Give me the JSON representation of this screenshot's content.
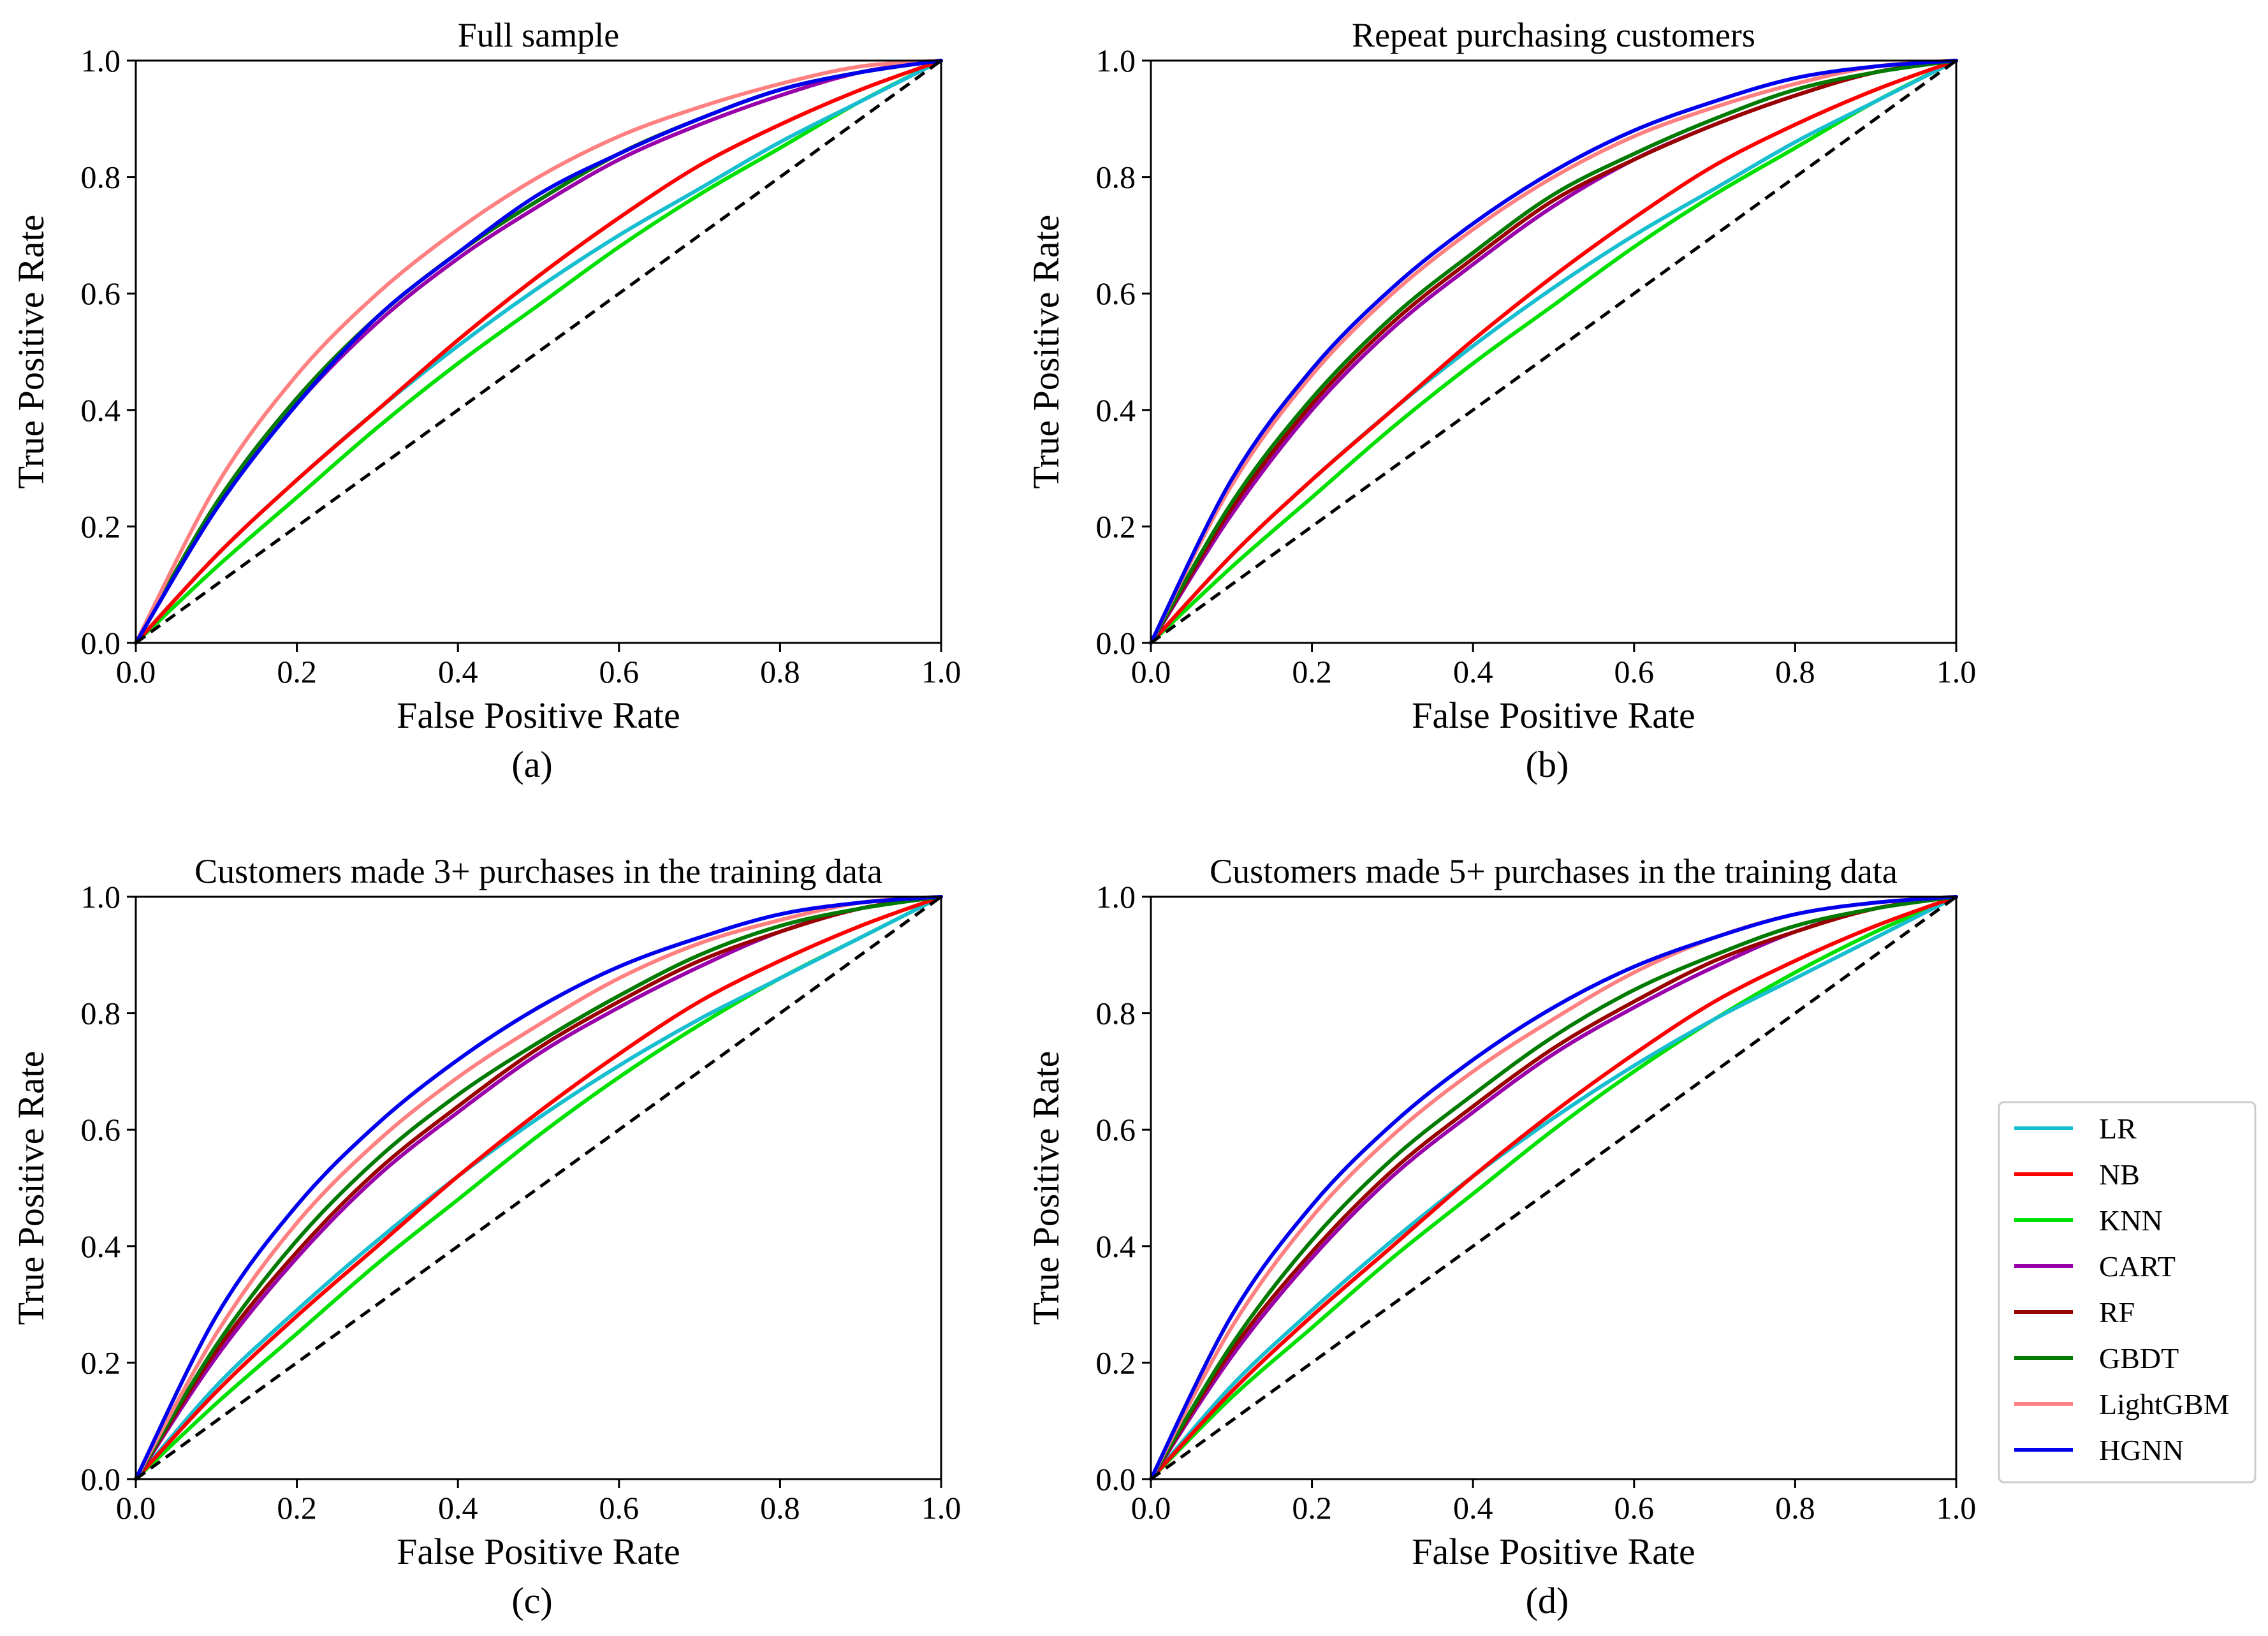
{
  "chart_data": [
    {
      "type": "line",
      "title": "Full sample",
      "xlabel": "False Positive Rate",
      "ylabel": "True Positive Rate",
      "panel_label": "(a)",
      "xlim": [
        0,
        1
      ],
      "ylim": [
        0,
        1
      ],
      "xticks": [
        "0.0",
        "0.2",
        "0.4",
        "0.6",
        "0.8",
        "1.0"
      ],
      "yticks": [
        "0.0",
        "0.2",
        "0.4",
        "0.6",
        "0.8",
        "1.0"
      ],
      "x": [
        0,
        0.1,
        0.2,
        0.3,
        0.4,
        0.5,
        0.6,
        0.7,
        0.8,
        0.9,
        1
      ],
      "series": [
        {
          "name": "LR",
          "values": [
            0,
            0.15,
            0.28,
            0.4,
            0.51,
            0.61,
            0.7,
            0.78,
            0.86,
            0.93,
            1.0
          ]
        },
        {
          "name": "NB",
          "values": [
            0,
            0.15,
            0.28,
            0.4,
            0.52,
            0.63,
            0.73,
            0.82,
            0.89,
            0.95,
            1.0
          ]
        },
        {
          "name": "KNN",
          "values": [
            0,
            0.13,
            0.25,
            0.37,
            0.48,
            0.58,
            0.68,
            0.77,
            0.85,
            0.93,
            1.0
          ]
        },
        {
          "name": "CART",
          "values": [
            0,
            0.23,
            0.41,
            0.55,
            0.66,
            0.75,
            0.83,
            0.89,
            0.94,
            0.98,
            1.0
          ]
        },
        {
          "name": "RF",
          "values": [
            0,
            0.24,
            0.42,
            0.56,
            0.67,
            0.76,
            0.84,
            0.9,
            0.95,
            0.98,
            1.0
          ]
        },
        {
          "name": "GBDT",
          "values": [
            0,
            0.24,
            0.42,
            0.56,
            0.67,
            0.76,
            0.84,
            0.9,
            0.95,
            0.98,
            1.0
          ]
        },
        {
          "name": "LightGBM",
          "values": [
            0,
            0.27,
            0.46,
            0.6,
            0.71,
            0.8,
            0.87,
            0.92,
            0.96,
            0.99,
            1.0
          ]
        },
        {
          "name": "HGNN",
          "values": [
            0,
            0.23,
            0.41,
            0.56,
            0.67,
            0.77,
            0.84,
            0.9,
            0.95,
            0.98,
            1.0
          ]
        }
      ]
    },
    {
      "type": "line",
      "title": "Repeat purchasing customers",
      "xlabel": "False Positive Rate",
      "ylabel": "True Positive Rate",
      "panel_label": "(b)",
      "xlim": [
        0,
        1
      ],
      "ylim": [
        0,
        1
      ],
      "xticks": [
        "0.0",
        "0.2",
        "0.4",
        "0.6",
        "0.8",
        "1.0"
      ],
      "yticks": [
        "0.0",
        "0.2",
        "0.4",
        "0.6",
        "0.8",
        "1.0"
      ],
      "x": [
        0,
        0.1,
        0.2,
        0.3,
        0.4,
        0.5,
        0.6,
        0.7,
        0.8,
        0.9,
        1
      ],
      "series": [
        {
          "name": "LR",
          "values": [
            0,
            0.15,
            0.28,
            0.4,
            0.51,
            0.61,
            0.7,
            0.78,
            0.86,
            0.93,
            1.0
          ]
        },
        {
          "name": "NB",
          "values": [
            0,
            0.15,
            0.28,
            0.4,
            0.52,
            0.63,
            0.73,
            0.82,
            0.89,
            0.95,
            1.0
          ]
        },
        {
          "name": "KNN",
          "values": [
            0,
            0.13,
            0.25,
            0.37,
            0.48,
            0.58,
            0.68,
            0.77,
            0.85,
            0.93,
            1.0
          ]
        },
        {
          "name": "CART",
          "values": [
            0,
            0.22,
            0.4,
            0.54,
            0.65,
            0.75,
            0.83,
            0.89,
            0.94,
            0.98,
            1.0
          ]
        },
        {
          "name": "RF",
          "values": [
            0,
            0.23,
            0.41,
            0.55,
            0.66,
            0.76,
            0.83,
            0.89,
            0.94,
            0.98,
            1.0
          ]
        },
        {
          "name": "GBDT",
          "values": [
            0,
            0.24,
            0.42,
            0.56,
            0.67,
            0.77,
            0.84,
            0.9,
            0.95,
            0.98,
            1.0
          ]
        },
        {
          "name": "LightGBM",
          "values": [
            0,
            0.27,
            0.46,
            0.6,
            0.71,
            0.8,
            0.87,
            0.92,
            0.96,
            0.99,
            1.0
          ]
        },
        {
          "name": "HGNN",
          "values": [
            0,
            0.28,
            0.47,
            0.61,
            0.72,
            0.81,
            0.88,
            0.93,
            0.97,
            0.99,
            1.0
          ]
        }
      ]
    },
    {
      "type": "line",
      "title": "Customers made 3+ purchases in the training data",
      "xlabel": "False Positive Rate",
      "ylabel": "True Positive Rate",
      "panel_label": "(c)",
      "xlim": [
        0,
        1
      ],
      "ylim": [
        0,
        1
      ],
      "xticks": [
        "0.0",
        "0.2",
        "0.4",
        "0.6",
        "0.8",
        "1.0"
      ],
      "yticks": [
        "0.0",
        "0.2",
        "0.4",
        "0.6",
        "0.8",
        "1.0"
      ],
      "x": [
        0,
        0.1,
        0.2,
        0.3,
        0.4,
        0.5,
        0.6,
        0.7,
        0.8,
        0.9,
        1
      ],
      "series": [
        {
          "name": "LR",
          "values": [
            0,
            0.16,
            0.29,
            0.41,
            0.52,
            0.62,
            0.71,
            0.79,
            0.86,
            0.93,
            1.0
          ]
        },
        {
          "name": "NB",
          "values": [
            0,
            0.15,
            0.28,
            0.4,
            0.52,
            0.63,
            0.73,
            0.82,
            0.89,
            0.95,
            1.0
          ]
        },
        {
          "name": "KNN",
          "values": [
            0,
            0.13,
            0.25,
            0.37,
            0.48,
            0.59,
            0.69,
            0.78,
            0.86,
            0.93,
            1.0
          ]
        },
        {
          "name": "CART",
          "values": [
            0,
            0.21,
            0.38,
            0.52,
            0.63,
            0.73,
            0.81,
            0.88,
            0.94,
            0.98,
            1.0
          ]
        },
        {
          "name": "RF",
          "values": [
            0,
            0.22,
            0.39,
            0.53,
            0.64,
            0.74,
            0.82,
            0.89,
            0.94,
            0.98,
            1.0
          ]
        },
        {
          "name": "GBDT",
          "values": [
            0,
            0.23,
            0.41,
            0.55,
            0.66,
            0.75,
            0.83,
            0.9,
            0.95,
            0.98,
            1.0
          ]
        },
        {
          "name": "LightGBM",
          "values": [
            0,
            0.25,
            0.44,
            0.58,
            0.69,
            0.78,
            0.86,
            0.92,
            0.96,
            0.99,
            1.0
          ]
        },
        {
          "name": "HGNN",
          "values": [
            0,
            0.28,
            0.47,
            0.61,
            0.72,
            0.81,
            0.88,
            0.93,
            0.97,
            0.99,
            1.0
          ]
        }
      ]
    },
    {
      "type": "line",
      "title": "Customers made 5+ purchases in the training data",
      "xlabel": "False Positive Rate",
      "ylabel": "True Positive Rate",
      "panel_label": "(d)",
      "xlim": [
        0,
        1
      ],
      "ylim": [
        0,
        1
      ],
      "xticks": [
        "0.0",
        "0.2",
        "0.4",
        "0.6",
        "0.8",
        "1.0"
      ],
      "yticks": [
        "0.0",
        "0.2",
        "0.4",
        "0.6",
        "0.8",
        "1.0"
      ],
      "x": [
        0,
        0.1,
        0.2,
        0.3,
        0.4,
        0.5,
        0.6,
        0.7,
        0.8,
        0.9,
        1
      ],
      "series": [
        {
          "name": "LR",
          "values": [
            0,
            0.16,
            0.29,
            0.41,
            0.52,
            0.62,
            0.71,
            0.79,
            0.86,
            0.93,
            1.0
          ]
        },
        {
          "name": "NB",
          "values": [
            0,
            0.15,
            0.28,
            0.4,
            0.52,
            0.63,
            0.73,
            0.82,
            0.89,
            0.95,
            1.0
          ]
        },
        {
          "name": "KNN",
          "values": [
            0,
            0.14,
            0.26,
            0.38,
            0.49,
            0.6,
            0.7,
            0.79,
            0.87,
            0.94,
            1.0
          ]
        },
        {
          "name": "CART",
          "values": [
            0,
            0.21,
            0.38,
            0.52,
            0.63,
            0.73,
            0.81,
            0.88,
            0.94,
            0.98,
            1.0
          ]
        },
        {
          "name": "RF",
          "values": [
            0,
            0.22,
            0.39,
            0.53,
            0.64,
            0.74,
            0.82,
            0.89,
            0.94,
            0.98,
            1.0
          ]
        },
        {
          "name": "GBDT",
          "values": [
            0,
            0.23,
            0.41,
            0.55,
            0.66,
            0.76,
            0.84,
            0.9,
            0.95,
            0.98,
            1.0
          ]
        },
        {
          "name": "LightGBM",
          "values": [
            0,
            0.26,
            0.45,
            0.59,
            0.7,
            0.79,
            0.87,
            0.93,
            0.97,
            0.99,
            1.0
          ]
        },
        {
          "name": "HGNN",
          "values": [
            0,
            0.28,
            0.47,
            0.61,
            0.72,
            0.81,
            0.88,
            0.93,
            0.97,
            0.99,
            1.0
          ]
        }
      ]
    }
  ],
  "legend": {
    "placement": "right of panel (d)",
    "entries": [
      "LR",
      "NB",
      "KNN",
      "CART",
      "RF",
      "GBDT",
      "LightGBM",
      "HGNN"
    ]
  },
  "colors": {
    "LR": "#17becf",
    "NB": "#ff0000",
    "KNN": "#00e000",
    "CART": "#9900aa",
    "RF": "#990000",
    "GBDT": "#007a00",
    "LightGBM": "#ff8080",
    "HGNN": "#0000ee",
    "diagonal": "#000000"
  }
}
